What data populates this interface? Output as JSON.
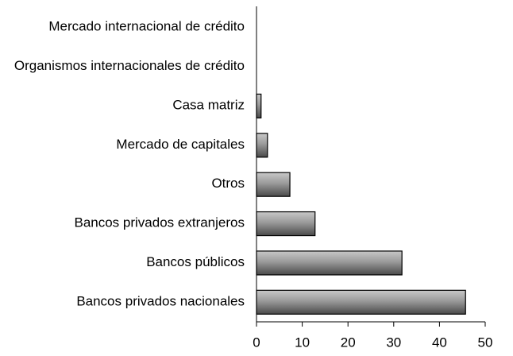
{
  "chart_data": {
    "type": "bar",
    "orientation": "horizontal",
    "categories": [
      "Mercado internacional de crédito",
      "Organismos internacionales de crédito",
      "Casa matriz",
      "Mercado de capitales",
      "Otros",
      "Bancos privados extranjeros",
      "Bancos públicos",
      "Bancos privados nacionales"
    ],
    "values": [
      0,
      0,
      1,
      2.4,
      7.3,
      12.8,
      31.8,
      45.7
    ],
    "color": "#808080",
    "xlim": [
      0,
      50
    ],
    "xticks": [
      0,
      10,
      20,
      30,
      40,
      50
    ],
    "grid": false
  }
}
